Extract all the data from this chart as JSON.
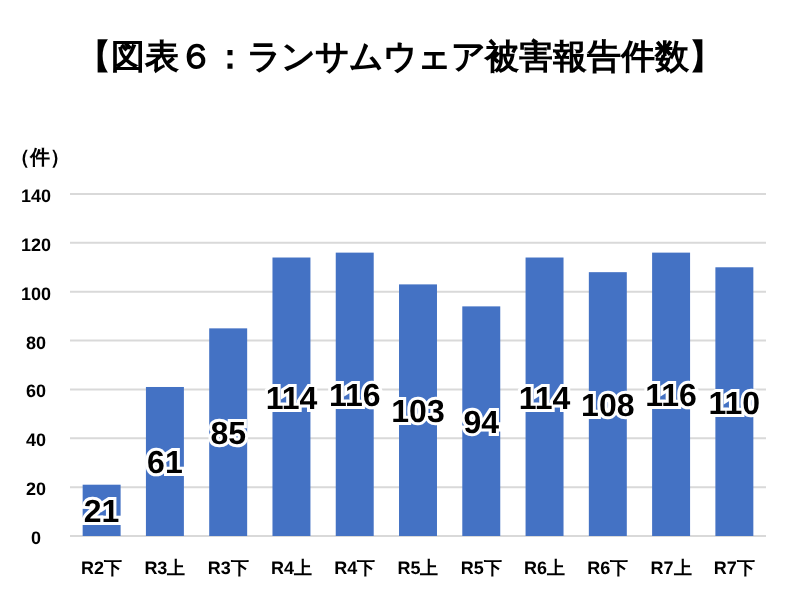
{
  "chart_data": {
    "type": "bar",
    "title": "【図表６：ランサムウェア被害報告件数】",
    "ylabel": "（件）",
    "categories": [
      "R2下",
      "R3上",
      "R3下",
      "R4上",
      "R4下",
      "R5上",
      "R5下",
      "R6上",
      "R6下",
      "R7上",
      "R7下"
    ],
    "values": [
      21,
      61,
      85,
      114,
      116,
      103,
      94,
      114,
      108,
      116,
      110
    ],
    "color": "#4472c4",
    "ylim": [
      0,
      140
    ],
    "yticks": [
      0,
      20,
      40,
      60,
      80,
      100,
      120,
      140
    ],
    "grid": "y",
    "data_labels": true
  }
}
